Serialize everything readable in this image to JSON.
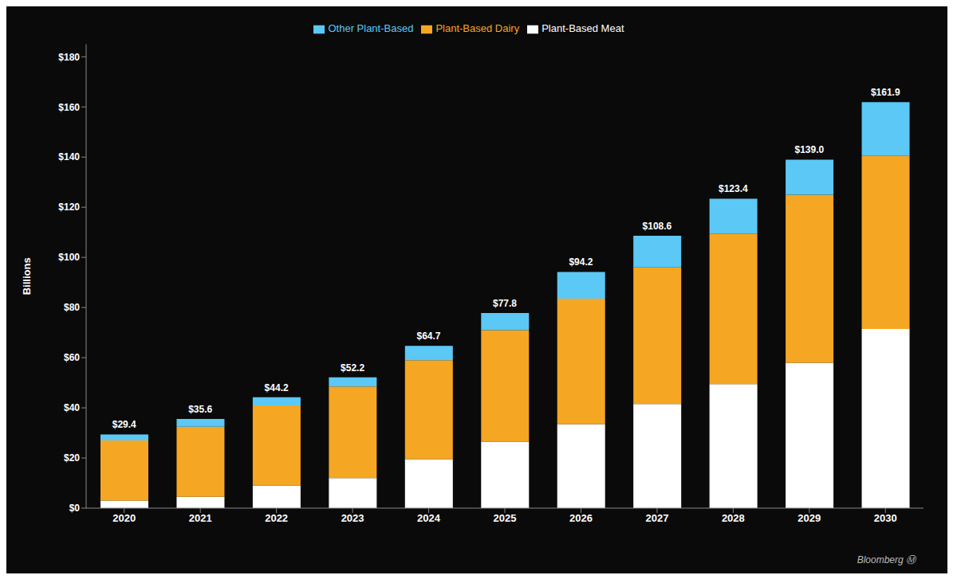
{
  "chart_data": {
    "type": "bar",
    "stacked": true,
    "categories": [
      "2020",
      "2021",
      "2022",
      "2023",
      "2024",
      "2025",
      "2026",
      "2027",
      "2028",
      "2029",
      "2030"
    ],
    "series": [
      {
        "name": "Plant-Based Meat",
        "color": "#ffffff",
        "values": [
          3.0,
          4.5,
          9.0,
          12.0,
          19.5,
          26.5,
          33.5,
          41.5,
          49.5,
          58.0,
          71.5
        ]
      },
      {
        "name": "Plant-Based Dairy",
        "color": "#f5a623",
        "values": [
          24.0,
          28.0,
          32.0,
          36.5,
          39.5,
          44.5,
          50.0,
          54.5,
          60.0,
          67.0,
          69.0
        ]
      },
      {
        "name": "Other Plant-Based",
        "color": "#5bc8f5",
        "values": [
          2.4,
          3.1,
          3.2,
          3.7,
          5.7,
          6.8,
          10.7,
          12.6,
          13.9,
          14.0,
          21.4
        ]
      }
    ],
    "totals": [
      29.4,
      35.6,
      44.2,
      52.2,
      64.7,
      77.8,
      94.2,
      108.6,
      123.4,
      139.0,
      161.9
    ],
    "total_labels": [
      "$29.4",
      "$35.6",
      "$44.2",
      "$52.2",
      "$64.7",
      "$77.8",
      "$94.2",
      "$108.6",
      "$123.4",
      "$139.0",
      "$161.9"
    ],
    "y_label": "Billions",
    "ylim": [
      0,
      185
    ],
    "yticks": [
      {
        "value": 0,
        "label": "$0"
      },
      {
        "value": 20,
        "label": "$20"
      },
      {
        "value": 40,
        "label": "$40"
      },
      {
        "value": 60,
        "label": "$60"
      },
      {
        "value": 80,
        "label": "$80"
      },
      {
        "value": 100,
        "label": "$100"
      },
      {
        "value": 120,
        "label": "$120"
      },
      {
        "value": 140,
        "label": "$140"
      },
      {
        "value": 160,
        "label": "$160"
      },
      {
        "value": 180,
        "label": "$180"
      }
    ],
    "grid": false,
    "legend": "top",
    "annotations": [
      "Bloomberg Ⓜ"
    ]
  }
}
